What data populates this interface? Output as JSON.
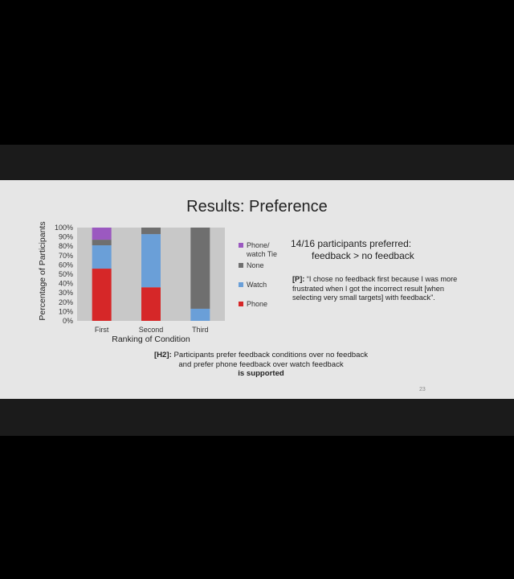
{
  "slide": {
    "title": "Results: Preference",
    "page_number": "23",
    "summary": {
      "line1": "14/16 participants preferred:",
      "line2": "feedback > no feedback"
    },
    "quote": {
      "tag": "[P]:",
      "text": " “I chose no feedback first because I was more frustrated when I got the incorrect result [when selecting very small targets] with feedback”."
    },
    "hypothesis": {
      "tag": "[H2]:",
      "text": " Participants prefer feedback conditions over no feedback",
      "line2": "and prefer phone feedback over watch feedback",
      "verdict": "is supported"
    }
  },
  "chart_data": {
    "type": "bar",
    "stacked": true,
    "categories": [
      "First",
      "Second",
      "Third"
    ],
    "xlabel": "Ranking of Condition",
    "ylabel": "Percentage of Participants",
    "ylim": [
      0,
      100
    ],
    "yticks": [
      "0%",
      "10%",
      "20%",
      "30%",
      "40%",
      "50%",
      "60%",
      "70%",
      "80%",
      "90%",
      "100%"
    ],
    "series": [
      {
        "name": "Phone",
        "color": "#d62728",
        "values": [
          56,
          36,
          0
        ]
      },
      {
        "name": "Watch",
        "color": "#6a9fd8",
        "values": [
          25,
          57,
          13
        ]
      },
      {
        "name": "None",
        "color": "#6f6f6f",
        "values": [
          6,
          7,
          87
        ]
      },
      {
        "name": "Phone/\nwatch Tie",
        "color": "#9b59c0",
        "values": [
          13,
          0,
          0
        ]
      }
    ],
    "legend_order": [
      "Phone/\nwatch Tie",
      "None",
      "Watch",
      "Phone"
    ],
    "legend_position": "right",
    "plot_background": "#c8c8c8",
    "grid": false
  }
}
